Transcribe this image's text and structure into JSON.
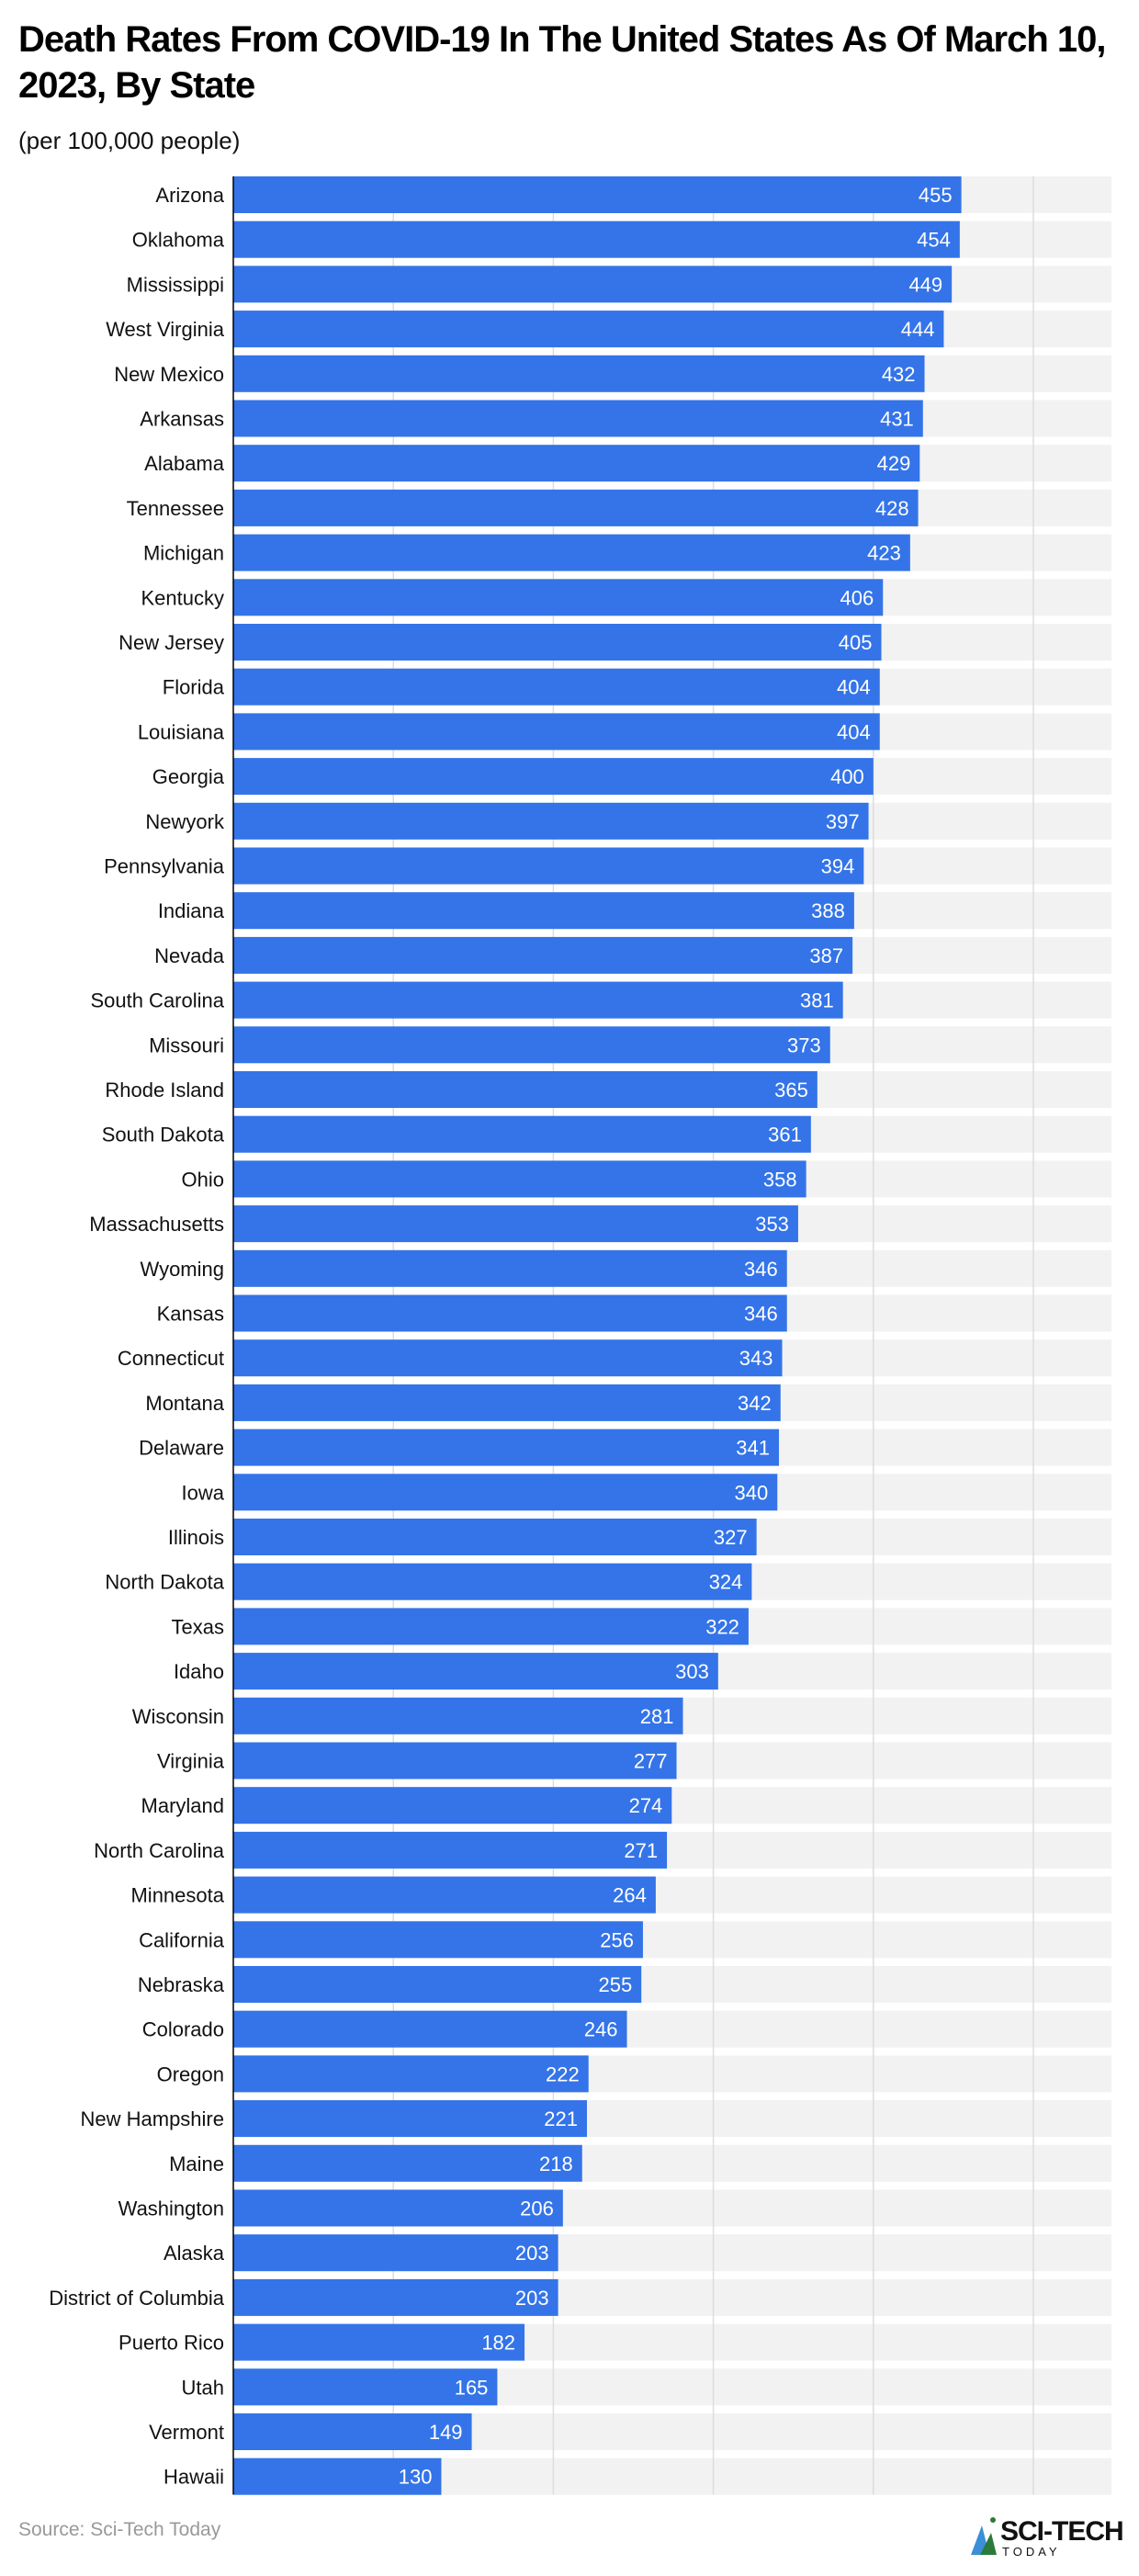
{
  "chart_data": {
    "type": "bar",
    "orientation": "horizontal",
    "title": "Death Rates From COVID-19 In The United States As Of March 10, 2023, By State",
    "subtitle": "(per 100,000 people)",
    "categories": [
      "Arizona",
      "Oklahoma",
      "Mississippi",
      "West Virginia",
      "New Mexico",
      "Arkansas",
      "Alabama",
      "Tennessee",
      "Michigan",
      "Kentucky",
      "New Jersey",
      "Florida",
      "Louisiana",
      "Georgia",
      "Newyork",
      "Pennsylvania",
      "Indiana",
      "Nevada",
      "South Carolina",
      "Missouri",
      "Rhode Island",
      "South Dakota",
      "Ohio",
      "Massachusetts",
      "Wyoming",
      "Kansas",
      "Connecticut",
      "Montana",
      "Delaware",
      "Iowa",
      "Illinois",
      "North Dakota",
      "Texas",
      "Idaho",
      "Wisconsin",
      "Virginia",
      "Maryland",
      "North Carolina",
      "Minnesota",
      "California",
      "Nebraska",
      "Colorado",
      "Oregon",
      "New Hampshire",
      "Maine",
      "Washington",
      "Alaska",
      "District of Columbia",
      "Puerto Rico",
      "Utah",
      "Vermont",
      "Hawaii"
    ],
    "values": [
      455,
      454,
      449,
      444,
      432,
      431,
      429,
      428,
      423,
      406,
      405,
      404,
      404,
      400,
      397,
      394,
      388,
      387,
      381,
      373,
      365,
      361,
      358,
      353,
      346,
      346,
      343,
      342,
      341,
      340,
      327,
      324,
      322,
      303,
      281,
      277,
      274,
      271,
      264,
      256,
      255,
      246,
      222,
      221,
      218,
      206,
      203,
      203,
      182,
      165,
      149,
      130
    ],
    "xlim": [
      0,
      550
    ],
    "xticks": [
      "0",
      "100",
      "200",
      "300",
      "400",
      "500"
    ],
    "grid": true,
    "data_labels": true,
    "colors": {
      "bar": "#3474E8",
      "track": "#F2F2F2",
      "grid": "#DDDDDD"
    }
  },
  "source": "Source: Sci-Tech Today",
  "logo": {
    "line1": "SCI-TECH",
    "line2": "TODAY"
  }
}
